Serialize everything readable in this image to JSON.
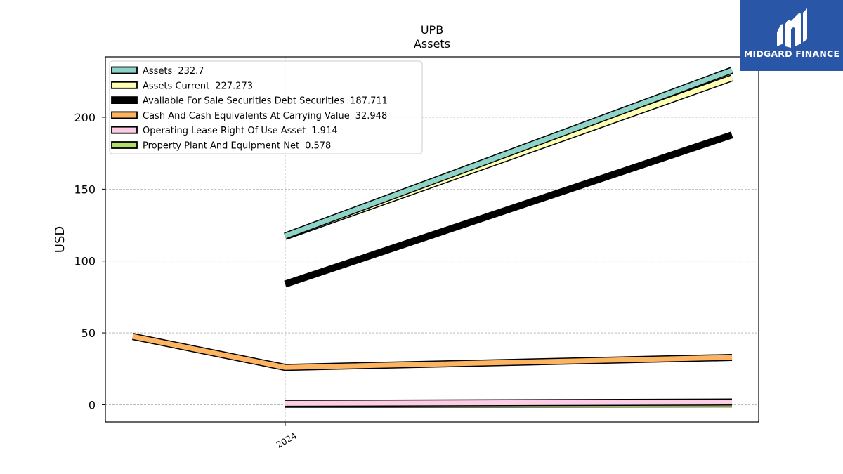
{
  "chart_data": {
    "type": "line",
    "title": "UPB",
    "subtitle": "Assets",
    "xlabel": "",
    "ylabel": "USD",
    "x_tick_labels": [
      "2024"
    ],
    "y_ticks": [
      0,
      50,
      100,
      150,
      200
    ],
    "ylim": [
      -12,
      242
    ],
    "grid": true,
    "legend_position": "top-left",
    "x": [
      "2023",
      "2024",
      "2025"
    ],
    "series": [
      {
        "name": "Assets",
        "legend_value": "232.7",
        "color": "#8dd3c7",
        "values": [
          null,
          117.5,
          232.7
        ]
      },
      {
        "name": "Assets Current",
        "legend_value": "227.273",
        "color": "#ffffb3",
        "values": [
          null,
          117.0,
          227.273
        ]
      },
      {
        "name": "Available For Sale Securities Debt Securities",
        "legend_value": "187.711",
        "color": "#000000",
        "values": [
          null,
          84.0,
          187.711
        ]
      },
      {
        "name": "Cash And Cash Equivalents At Carrying Value",
        "legend_value": "32.948",
        "color": "#fdb462",
        "values": [
          47.5,
          26.0,
          32.948
        ]
      },
      {
        "name": "Operating Lease Right Of Use Asset",
        "legend_value": "1.914",
        "color": "#fccde5",
        "values": [
          null,
          1.0,
          1.914
        ]
      },
      {
        "name": "Property Plant And Equipment Net",
        "legend_value": "0.578",
        "color": "#b3de69",
        "values": [
          null,
          0.3,
          0.578
        ]
      }
    ]
  },
  "logo": {
    "text": "MIDGARD FINANCE"
  }
}
